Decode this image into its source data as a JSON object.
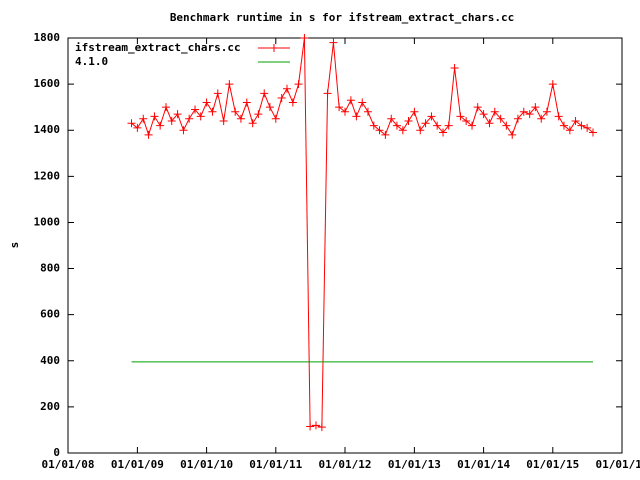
{
  "chart_data": {
    "type": "line",
    "title": "Benchmark runtime in s for ifstream_extract_chars.cc",
    "y_label": "s",
    "xlim": [
      "2008-01-01",
      "2016-01-01"
    ],
    "xticks": [
      {
        "value": "2008-01-01",
        "label": "01/01/08"
      },
      {
        "value": "2009-01-01",
        "label": "01/01/09"
      },
      {
        "value": "2010-01-01",
        "label": "01/01/10"
      },
      {
        "value": "2011-01-01",
        "label": "01/01/11"
      },
      {
        "value": "2012-01-01",
        "label": "01/01/12"
      },
      {
        "value": "2013-01-01",
        "label": "01/01/13"
      },
      {
        "value": "2014-01-01",
        "label": "01/01/14"
      },
      {
        "value": "2015-01-01",
        "label": "01/01/15"
      },
      {
        "value": "2016-01-01",
        "label": "01/01/16"
      }
    ],
    "ylim": [
      0,
      1800
    ],
    "yticks": [
      0,
      200,
      400,
      600,
      800,
      1000,
      1200,
      1400,
      1600,
      1800
    ],
    "legend": "top-left",
    "x": [
      "2008-12-01",
      "2009-01-01",
      "2009-02-01",
      "2009-03-01",
      "2009-04-01",
      "2009-05-01",
      "2009-06-01",
      "2009-07-01",
      "2009-08-01",
      "2009-09-01",
      "2009-10-01",
      "2009-11-01",
      "2009-12-01",
      "2010-01-01",
      "2010-02-01",
      "2010-03-01",
      "2010-04-01",
      "2010-05-01",
      "2010-06-01",
      "2010-07-01",
      "2010-08-01",
      "2010-09-01",
      "2010-10-01",
      "2010-11-01",
      "2010-12-01",
      "2011-01-01",
      "2011-02-01",
      "2011-03-01",
      "2011-04-01",
      "2011-05-01",
      "2011-06-01",
      "2011-07-01",
      "2011-08-01",
      "2011-09-01",
      "2011-10-01",
      "2011-11-01",
      "2011-12-01",
      "2012-01-01",
      "2012-02-01",
      "2012-03-01",
      "2012-04-01",
      "2012-05-01",
      "2012-06-01",
      "2012-07-01",
      "2012-08-01",
      "2012-09-01",
      "2012-10-01",
      "2012-11-01",
      "2012-12-01",
      "2013-01-01",
      "2013-02-01",
      "2013-03-01",
      "2013-04-01",
      "2013-05-01",
      "2013-06-01",
      "2013-07-01",
      "2013-08-01",
      "2013-09-01",
      "2013-10-01",
      "2013-11-01",
      "2013-12-01",
      "2014-01-01",
      "2014-02-01",
      "2014-03-01",
      "2014-04-01",
      "2014-05-01",
      "2014-06-01",
      "2014-07-01",
      "2014-08-01",
      "2014-09-01",
      "2014-10-01",
      "2014-11-01",
      "2014-12-01",
      "2015-01-01",
      "2015-02-01",
      "2015-03-01",
      "2015-04-01",
      "2015-05-01",
      "2015-06-01",
      "2015-07-01",
      "2015-08-01"
    ],
    "series": [
      {
        "name": "ifstream_extract_chars.cc",
        "color": "#ff0000",
        "marker": "+",
        "values": [
          1430,
          1410,
          1450,
          1380,
          1460,
          1420,
          1500,
          1440,
          1470,
          1400,
          1450,
          1490,
          1460,
          1520,
          1480,
          1560,
          1440,
          1600,
          1480,
          1450,
          1520,
          1430,
          1470,
          1560,
          1500,
          1450,
          1540,
          1580,
          1520,
          1600,
          1800,
          115,
          120,
          112,
          1560,
          1780,
          1500,
          1480,
          1530,
          1460,
          1520,
          1480,
          1420,
          1400,
          1380,
          1450,
          1420,
          1400,
          1440,
          1480,
          1400,
          1430,
          1460,
          1420,
          1390,
          1420,
          1670,
          1460,
          1440,
          1420,
          1500,
          1470,
          1430,
          1480,
          1450,
          1420,
          1380,
          1450,
          1480,
          1470,
          1500,
          1450,
          1480,
          1600,
          1460,
          1420,
          1400,
          1440,
          1420,
          1410,
          1390
        ]
      },
      {
        "name": "4.1.0",
        "color": "#00a000",
        "x": [
          "2008-12-01",
          "2015-08-01"
        ],
        "values": [
          395,
          395
        ]
      }
    ]
  }
}
